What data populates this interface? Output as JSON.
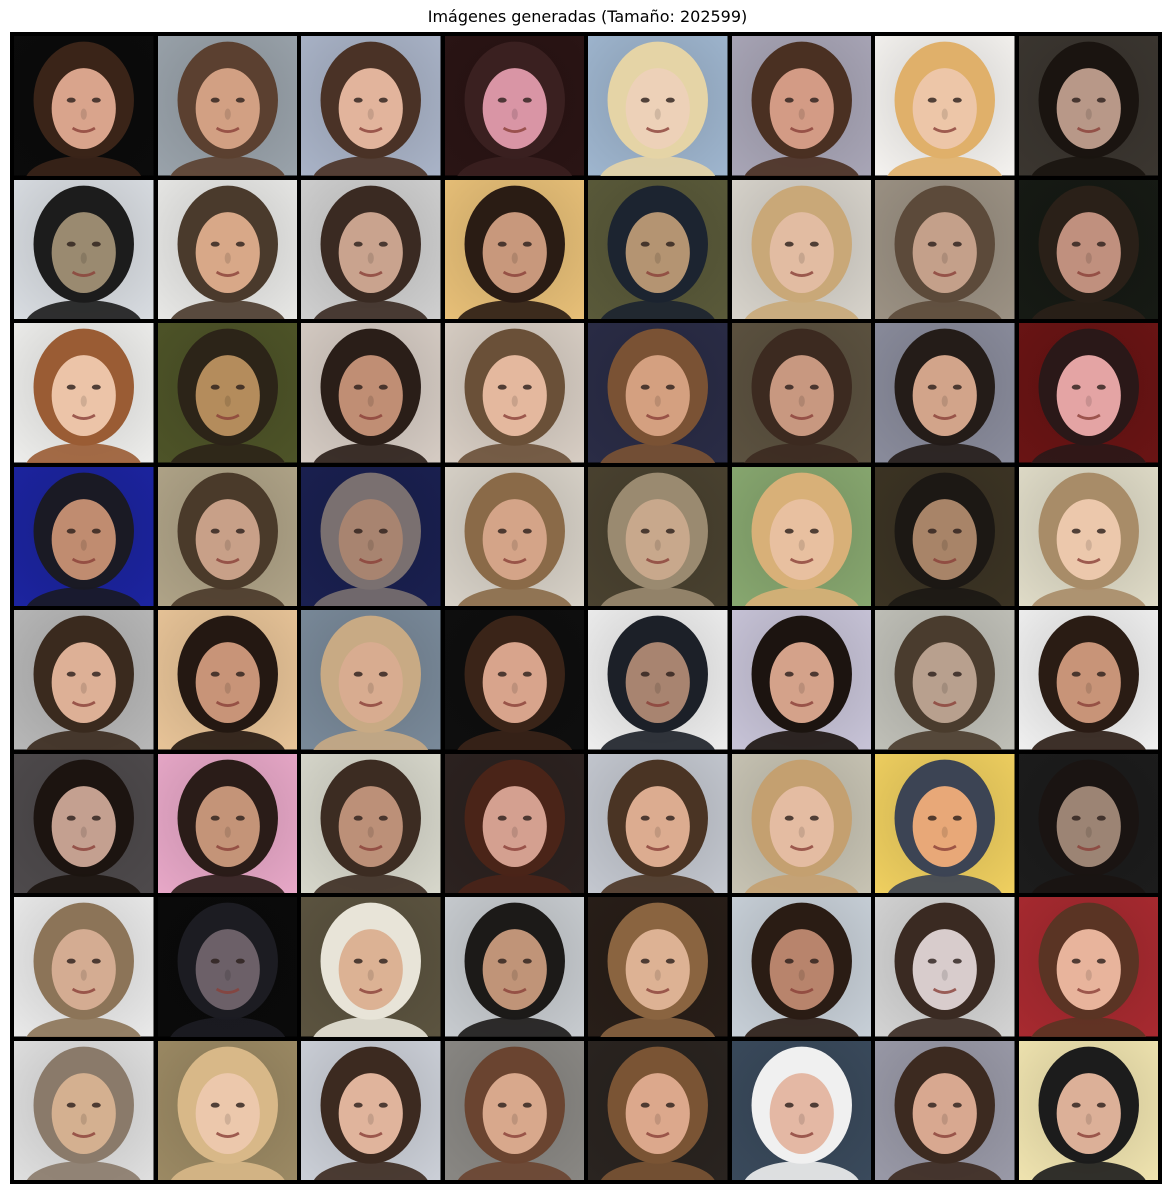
{
  "title": "Imágenes generadas (Tamaño: 202599)",
  "grid": {
    "rows": 8,
    "columns": 8,
    "tile_count": 64
  },
  "tiles": [
    {
      "bg": "#0b0b0b",
      "hair": "#3a2418",
      "skin": "#d9a48c"
    },
    {
      "bg": "#9aa3ab",
      "hair": "#5b4030",
      "skin": "#d2a083"
    },
    {
      "bg": "#aab4c8",
      "hair": "#4a3226",
      "skin": "#e2b49c"
    },
    {
      "bg": "#2a1414",
      "hair": "#3a2020",
      "skin": "#d995a5"
    },
    {
      "bg": "#9fb6cf",
      "hair": "#e5d4a6",
      "skin": "#edd1b8"
    },
    {
      "bg": "#a9a6b7",
      "hair": "#4a3022",
      "skin": "#d39b85"
    },
    {
      "bg": "#f5f3f0",
      "hair": "#e0b06a",
      "skin": "#edc6a8"
    },
    {
      "bg": "#3b3630",
      "hair": "#1a1410",
      "skin": "#b89888"
    },
    {
      "bg": "#d9dde2",
      "hair": "#1c1c1c",
      "skin": "#9a8a70"
    },
    {
      "bg": "#e8e8e6",
      "hair": "#4a3a2c",
      "skin": "#d8a888"
    },
    {
      "bg": "#d0d0d0",
      "hair": "#3a2a22",
      "skin": "#c9a38e"
    },
    {
      "bg": "#e8c078",
      "hair": "#2a1c14",
      "skin": "#c8987c"
    },
    {
      "bg": "#5a5a3a",
      "hair": "#1c2430",
      "skin": "#b49472"
    },
    {
      "bg": "#d8d4cc",
      "hair": "#c9a878",
      "skin": "#e2bca2"
    },
    {
      "bg": "#9c9284",
      "hair": "#5c4a3a",
      "skin": "#c4a08a"
    },
    {
      "bg": "#161a14",
      "hair": "#2a2018",
      "skin": "#c0907e"
    },
    {
      "bg": "#eeeeec",
      "hair": "#9a5c34",
      "skin": "#ecc4a8"
    },
    {
      "bg": "#4e5428",
      "hair": "#2c2418",
      "skin": "#b48c5c"
    },
    {
      "bg": "#d6ccc4",
      "hair": "#2a1e18",
      "skin": "#c08e74"
    },
    {
      "bg": "#d8cec4",
      "hair": "#6a5038",
      "skin": "#e4b89e"
    },
    {
      "bg": "#2a2c46",
      "hair": "#7a5234",
      "skin": "#d4a080"
    },
    {
      "bg": "#5c5240",
      "hair": "#3c2a20",
      "skin": "#c89880"
    },
    {
      "bg": "#8a8c9c",
      "hair": "#241c18",
      "skin": "#d2a48a"
    },
    {
      "bg": "#6a1414",
      "hair": "#2a1818",
      "skin": "#e4a4a4"
    },
    {
      "bg": "#1c24a0",
      "hair": "#1a1a24",
      "skin": "#c08c70"
    },
    {
      "bg": "#b0a488",
      "hair": "#4a3a2a",
      "skin": "#c8a088"
    },
    {
      "bg": "#1a2050",
      "hair": "#7a7070",
      "skin": "#a88470"
    },
    {
      "bg": "#d8d2c8",
      "hair": "#8a6a48",
      "skin": "#d4a488"
    },
    {
      "bg": "#4a4230",
      "hair": "#9a8a70",
      "skin": "#c8a88c"
    },
    {
      "bg": "#88a870",
      "hair": "#d8b078",
      "skin": "#e8c0a0"
    },
    {
      "bg": "#3c3424",
      "hair": "#1c1814",
      "skin": "#a88468"
    },
    {
      "bg": "#e0dcc8",
      "hair": "#a88c68",
      "skin": "#ecc8ac"
    },
    {
      "bg": "#b8b8b8",
      "hair": "#3a2a1e",
      "skin": "#ddb096"
    },
    {
      "bg": "#e8c498",
      "hair": "#241812",
      "skin": "#c89478"
    },
    {
      "bg": "#7a8a9a",
      "hair": "#c8aa84",
      "skin": "#d8ac90"
    },
    {
      "bg": "#0e0e0e",
      "hair": "#3a2418",
      "skin": "#d8a48c"
    },
    {
      "bg": "#eeeeee",
      "hair": "#1c2028",
      "skin": "#a88470"
    },
    {
      "bg": "#c8c4d8",
      "hair": "#1c1410",
      "skin": "#d4a28a"
    },
    {
      "bg": "#c0c0b8",
      "hair": "#4a3c2e",
      "skin": "#b8a08e"
    },
    {
      "bg": "#f0f0f0",
      "hair": "#2a1c14",
      "skin": "#c89478"
    },
    {
      "bg": "#4e4a4c",
      "hair": "#1c1410",
      "skin": "#c4a090"
    },
    {
      "bg": "#e8a8c8",
      "hair": "#2a1c18",
      "skin": "#c49478"
    },
    {
      "bg": "#d8d8cc",
      "hair": "#3c2c22",
      "skin": "#bc9078"
    },
    {
      "bg": "#2c2220",
      "hair": "#4a2418",
      "skin": "#d4a090"
    },
    {
      "bg": "#c4c8d0",
      "hair": "#4a3424",
      "skin": "#dcac90"
    },
    {
      "bg": "#c8c4b4",
      "hair": "#c4a070",
      "skin": "#e4bca2"
    },
    {
      "bg": "#f0d060",
      "hair": "#3c4454",
      "skin": "#e8a878"
    },
    {
      "bg": "#1c1c1c",
      "hair": "#1a1412",
      "skin": "#9c8474"
    },
    {
      "bg": "#eaeaea",
      "hair": "#8c7458",
      "skin": "#d4ac92"
    },
    {
      "bg": "#0a0a0a",
      "hair": "#1c1c22",
      "skin": "#6c6068"
    },
    {
      "bg": "#5c5440",
      "hair": "#e8e4d8",
      "skin": "#dcb294"
    },
    {
      "bg": "#c8ccd0",
      "hair": "#1c1a18",
      "skin": "#c09478"
    },
    {
      "bg": "#281e18",
      "hair": "#8a6440",
      "skin": "#ddb294"
    },
    {
      "bg": "#c8d0d8",
      "hair": "#2a1c14",
      "skin": "#b8846c"
    },
    {
      "bg": "#d4d4d4",
      "hair": "#3a2a22",
      "skin": "#d8cccc"
    },
    {
      "bg": "#a82a30",
      "hair": "#5a3424",
      "skin": "#e8b49c"
    },
    {
      "bg": "#e0e0e0",
      "hair": "#8a7a6a",
      "skin": "#d4b090"
    },
    {
      "bg": "#9c8a64",
      "hair": "#d8b888",
      "skin": "#ecc8ac"
    },
    {
      "bg": "#ccd0d8",
      "hair": "#3c2a20",
      "skin": "#e0b49c"
    },
    {
      "bg": "#8a8884",
      "hair": "#6a4430",
      "skin": "#d8a88c"
    },
    {
      "bg": "#2a2420",
      "hair": "#7a5434",
      "skin": "#dca88c"
    },
    {
      "bg": "#3a4a5c",
      "hair": "#f0f0f0",
      "skin": "#e4b8a4"
    },
    {
      "bg": "#9a9aa8",
      "hair": "#3c2a20",
      "skin": "#d8a890"
    },
    {
      "bg": "#f0e4b0",
      "hair": "#1c1c1c",
      "skin": "#dcb098"
    }
  ]
}
